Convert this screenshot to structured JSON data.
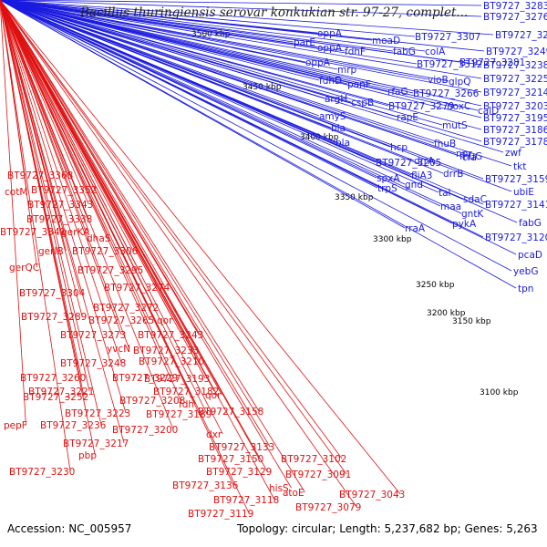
{
  "title": "Bacillus thuringiensis serovar konkukian str. 97-27, complet...",
  "accession": "Accession: NC_005957",
  "topology": "Topology: circular; Length: 5,237,682 bp; Genes: 5,263",
  "ticks": [
    "3100 kbp",
    "3150 kbp",
    "3200 kbp",
    "3250 kbp",
    "3300 kbp",
    "3350 kbp",
    "3400 kbp",
    "3450 kbp",
    "3500 kbp"
  ],
  "colors": {
    "forward": "#1a1adf",
    "reverse": "#e01010",
    "backbone": "#888888",
    "dots": "#2a8a2a"
  },
  "forward_labels": [
    "BT9727_3283",
    "BT9727_3276",
    "BT9727_3271",
    "BT9727_3249",
    "BT9727_3238",
    "BT9727_3225",
    "BT9727_3214",
    "BT9727_3203",
    "BT9727_3195",
    "BT9727_3186",
    "BT9727_3178",
    "zwf",
    "tkt",
    "BT9727_3159",
    "ubiE",
    "BT9727_3141",
    "fabG",
    "BT9727_3120",
    "pcaD",
    "yebG",
    "tpn",
    "oppA",
    "parE",
    "oppA",
    "fdhF",
    "moaD",
    "fabG",
    "BT9727_3307",
    "oppA",
    "colA",
    "mrp",
    "BT9727_3312",
    "BT9727_3281",
    "fdhD",
    "panF",
    "vioB",
    "glpQ",
    "argH",
    "cspB",
    "rfaG",
    "BT9727_3266",
    "BT9727_3279",
    "noxC",
    "calD",
    "amyS",
    "rapE",
    "bla",
    "mutS",
    "bla",
    "fhuB",
    "hcp",
    "drrA",
    "fhuG",
    "BT9727_3205",
    "fliA3",
    "drrB",
    "npr",
    "cfa",
    "spxA",
    "gnd",
    "sdaC",
    "tal",
    "gntK",
    "trpS",
    "maa",
    "pykA",
    "rraA"
  ],
  "reverse_labels": [
    "BT9727_3368",
    "cotM",
    "BT9727_3352",
    "BT9727_3343",
    "BT9727_3338",
    "BT9727_3341",
    "gerKA",
    "dhaS",
    "gerIB",
    "BT9727_3306",
    "gerQC",
    "BT9727_3295",
    "BT9727_3304",
    "BT9727_3274",
    "BT9727_3272",
    "BT9727_3289",
    "BT9727_3265",
    "qor",
    "BT9727_3273",
    "BT9727_3243",
    "yvcN",
    "BT9727_3233",
    "BT9727_3248",
    "BT9727_3210",
    "BT9727_3260",
    "BT9727_3229",
    "BT9727_3193",
    "BT9727_3221",
    "BT9727_3182",
    "BT9727_3252",
    "BT9727_3208",
    "fdh",
    "qor",
    "BT9727_3223",
    "BT9727_3189",
    "BT9727_3158",
    "pepF",
    "BT9727_3236",
    "BT9727_3200",
    "dxr",
    "BT9727_3217",
    "BT9727_3133",
    "pbp",
    "BT9727_3150",
    "BT9727_3102",
    "BT9727_3230",
    "BT9727_3129",
    "BT9727_3091",
    "BT9727_3136",
    "hisS",
    "atoE",
    "BT9727_3118",
    "BT9727_3043",
    "BT9727_3119",
    "BT9727_3079"
  ]
}
